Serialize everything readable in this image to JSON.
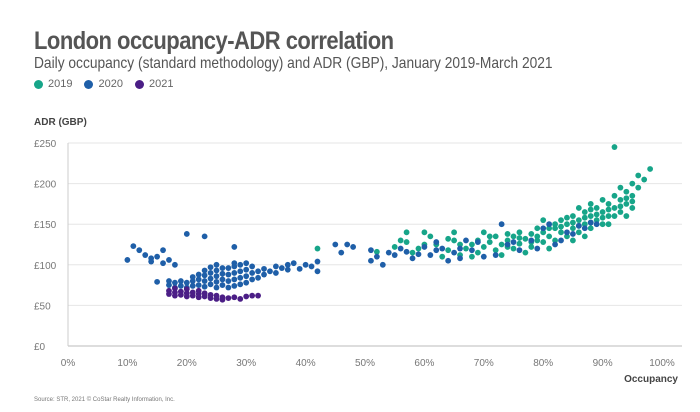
{
  "chart_data": {
    "type": "scatter",
    "title": "London occupancy-ADR correlation",
    "subtitle": "Daily occupancy (standard methodology) and ADR (GBP), January 2019-March 2021",
    "xlabel": "Occupancy",
    "ylabel": "ADR (GBP)",
    "xlim": [
      0,
      100
    ],
    "ylim": [
      0,
      250
    ],
    "x_ticks": [
      "0%",
      "10%",
      "20%",
      "30%",
      "40%",
      "50%",
      "60%",
      "70%",
      "80%",
      "90%",
      "100%"
    ],
    "y_ticks": [
      "£0",
      "£50",
      "£100",
      "£150",
      "£200",
      "£250"
    ],
    "grid": "horizontal",
    "legend_position": "top-left",
    "source": "Source: STR, 2021 © CoStar Realty Information, Inc.",
    "series": [
      {
        "name": "2019",
        "color": "#17a589",
        "points": [
          [
            42,
            120
          ],
          [
            52,
            116
          ],
          [
            55,
            122
          ],
          [
            56,
            130
          ],
          [
            57,
            128
          ],
          [
            58,
            115
          ],
          [
            60,
            125
          ],
          [
            61,
            135
          ],
          [
            63,
            110
          ],
          [
            64,
            118
          ],
          [
            65,
            130
          ],
          [
            66,
            112
          ],
          [
            67,
            120
          ],
          [
            68,
            125
          ],
          [
            69,
            115
          ],
          [
            70,
            122
          ],
          [
            71,
            128
          ],
          [
            72,
            118
          ],
          [
            73,
            125
          ],
          [
            74,
            130
          ],
          [
            75,
            135
          ],
          [
            75,
            120
          ],
          [
            76,
            126
          ],
          [
            77,
            132
          ],
          [
            78,
            138
          ],
          [
            78,
            122
          ],
          [
            79,
            130
          ],
          [
            80,
            128
          ],
          [
            80,
            140
          ],
          [
            81,
            135
          ],
          [
            82,
            145
          ],
          [
            82,
            130
          ],
          [
            83,
            140
          ],
          [
            84,
            150
          ],
          [
            84,
            135
          ],
          [
            85,
            145
          ],
          [
            85,
            160
          ],
          [
            86,
            140
          ],
          [
            86,
            155
          ],
          [
            87,
            150
          ],
          [
            87,
            165
          ],
          [
            88,
            145
          ],
          [
            88,
            160
          ],
          [
            89,
            155
          ],
          [
            89,
            170
          ],
          [
            90,
            150
          ],
          [
            90,
            165
          ],
          [
            91,
            160
          ],
          [
            91,
            175
          ],
          [
            92,
            170
          ],
          [
            92,
            185
          ],
          [
            92,
            245
          ],
          [
            93,
            165
          ],
          [
            93,
            180
          ],
          [
            93,
            195
          ],
          [
            94,
            175
          ],
          [
            94,
            190
          ],
          [
            95,
            170
          ],
          [
            95,
            185
          ],
          [
            95,
            200
          ],
          [
            96,
            195
          ],
          [
            96,
            210
          ],
          [
            97,
            205
          ],
          [
            98,
            218
          ],
          [
            70,
            140
          ],
          [
            65,
            140
          ],
          [
            60,
            140
          ],
          [
            72,
            135
          ],
          [
            74,
            122
          ],
          [
            76,
            140
          ],
          [
            79,
            145
          ],
          [
            83,
            155
          ],
          [
            86,
            170
          ],
          [
            88,
            175
          ],
          [
            90,
            180
          ],
          [
            94,
            160
          ],
          [
            91,
            150
          ],
          [
            77,
            115
          ],
          [
            81,
            120
          ],
          [
            87,
            135
          ],
          [
            85,
            130
          ],
          [
            62,
            125
          ],
          [
            68,
            110
          ],
          [
            73,
            112
          ],
          [
            88,
            152
          ],
          [
            80,
            155
          ],
          [
            81,
            145
          ],
          [
            82,
            150
          ],
          [
            83,
            147
          ],
          [
            84,
            158
          ],
          [
            85,
            152
          ],
          [
            86,
            148
          ],
          [
            87,
            158
          ],
          [
            88,
            168
          ],
          [
            89,
            162
          ],
          [
            90,
            158
          ],
          [
            91,
            168
          ],
          [
            92,
            160
          ],
          [
            93,
            172
          ],
          [
            94,
            182
          ],
          [
            95,
            178
          ],
          [
            79,
            135
          ],
          [
            78,
            128
          ],
          [
            76,
            133
          ],
          [
            74,
            138
          ],
          [
            71,
            135
          ],
          [
            69,
            130
          ],
          [
            66,
            125
          ],
          [
            64,
            132
          ],
          [
            59,
            120
          ],
          [
            57,
            140
          ]
        ]
      },
      {
        "name": "2020",
        "color": "#1f5fa8",
        "points": [
          [
            10,
            106
          ],
          [
            11,
            123
          ],
          [
            12,
            118
          ],
          [
            13,
            112
          ],
          [
            14,
            104
          ],
          [
            14,
            108
          ],
          [
            15,
            110
          ],
          [
            16,
            102
          ],
          [
            16,
            118
          ],
          [
            17,
            106
          ],
          [
            18,
            100
          ],
          [
            15,
            79
          ],
          [
            20,
            138
          ],
          [
            23,
            135
          ],
          [
            28,
            122
          ],
          [
            28,
            102
          ],
          [
            17,
            75
          ],
          [
            17,
            80
          ],
          [
            18,
            72
          ],
          [
            18,
            78
          ],
          [
            19,
            74
          ],
          [
            19,
            80
          ],
          [
            20,
            72
          ],
          [
            20,
            78
          ],
          [
            21,
            74
          ],
          [
            21,
            80
          ],
          [
            21,
            85
          ],
          [
            22,
            75
          ],
          [
            22,
            82
          ],
          [
            22,
            88
          ],
          [
            23,
            73
          ],
          [
            23,
            80
          ],
          [
            23,
            87
          ],
          [
            23,
            93
          ],
          [
            24,
            76
          ],
          [
            24,
            83
          ],
          [
            24,
            90
          ],
          [
            24,
            97
          ],
          [
            25,
            72
          ],
          [
            25,
            79
          ],
          [
            25,
            86
          ],
          [
            25,
            93
          ],
          [
            25,
            100
          ],
          [
            26,
            75
          ],
          [
            26,
            82
          ],
          [
            26,
            89
          ],
          [
            26,
            96
          ],
          [
            27,
            72
          ],
          [
            27,
            80
          ],
          [
            27,
            88
          ],
          [
            27,
            96
          ],
          [
            28,
            74
          ],
          [
            28,
            82
          ],
          [
            28,
            90
          ],
          [
            28,
            98
          ],
          [
            29,
            76
          ],
          [
            29,
            84
          ],
          [
            29,
            92
          ],
          [
            29,
            100
          ],
          [
            30,
            78
          ],
          [
            30,
            86
          ],
          [
            30,
            94
          ],
          [
            30,
            102
          ],
          [
            31,
            82
          ],
          [
            31,
            90
          ],
          [
            31,
            98
          ],
          [
            32,
            84
          ],
          [
            32,
            92
          ],
          [
            33,
            88
          ],
          [
            33,
            95
          ],
          [
            34,
            92
          ],
          [
            35,
            90
          ],
          [
            35,
            98
          ],
          [
            36,
            96
          ],
          [
            37,
            94
          ],
          [
            37,
            100
          ],
          [
            38,
            102
          ],
          [
            39,
            95
          ],
          [
            40,
            100
          ],
          [
            41,
            98
          ],
          [
            42,
            92
          ],
          [
            42,
            104
          ],
          [
            45,
            125
          ],
          [
            46,
            115
          ],
          [
            47,
            125
          ],
          [
            48,
            122
          ],
          [
            51,
            118
          ],
          [
            51,
            105
          ],
          [
            52,
            110
          ],
          [
            53,
            100
          ],
          [
            54,
            115
          ],
          [
            55,
            112
          ],
          [
            56,
            120
          ],
          [
            57,
            116
          ],
          [
            58,
            108
          ],
          [
            59,
            113
          ],
          [
            60,
            122
          ],
          [
            61,
            112
          ],
          [
            62,
            118
          ],
          [
            62,
            128
          ],
          [
            63,
            120
          ],
          [
            64,
            105
          ],
          [
            65,
            115
          ],
          [
            66,
            108
          ],
          [
            66,
            120
          ],
          [
            67,
            130
          ],
          [
            68,
            118
          ],
          [
            69,
            128
          ],
          [
            70,
            110
          ],
          [
            72,
            112
          ],
          [
            73,
            150
          ],
          [
            74,
            125
          ],
          [
            75,
            128
          ],
          [
            76,
            118
          ],
          [
            78,
            130
          ],
          [
            79,
            120
          ],
          [
            80,
            145
          ],
          [
            81,
            150
          ],
          [
            82,
            125
          ],
          [
            83,
            130
          ],
          [
            84,
            140
          ],
          [
            85,
            138
          ],
          [
            86,
            148
          ],
          [
            87,
            145
          ],
          [
            88,
            152
          ],
          [
            89,
            150
          ]
        ]
      },
      {
        "name": "2021",
        "color": "#4b1e86",
        "points": [
          [
            17,
            68
          ],
          [
            17,
            64
          ],
          [
            18,
            66
          ],
          [
            18,
            62
          ],
          [
            19,
            67
          ],
          [
            19,
            63
          ],
          [
            20,
            65
          ],
          [
            20,
            61
          ],
          [
            21,
            66
          ],
          [
            21,
            62
          ],
          [
            22,
            64
          ],
          [
            22,
            60
          ],
          [
            23,
            65
          ],
          [
            23,
            61
          ],
          [
            24,
            63
          ],
          [
            24,
            59
          ],
          [
            25,
            62
          ],
          [
            25,
            58
          ],
          [
            26,
            60
          ],
          [
            26,
            57
          ],
          [
            27,
            59
          ],
          [
            28,
            60
          ],
          [
            29,
            58
          ],
          [
            30,
            61
          ],
          [
            31,
            62
          ],
          [
            32,
            62
          ],
          [
            20,
            70
          ],
          [
            18,
            71
          ],
          [
            22,
            68
          ]
        ]
      }
    ]
  }
}
